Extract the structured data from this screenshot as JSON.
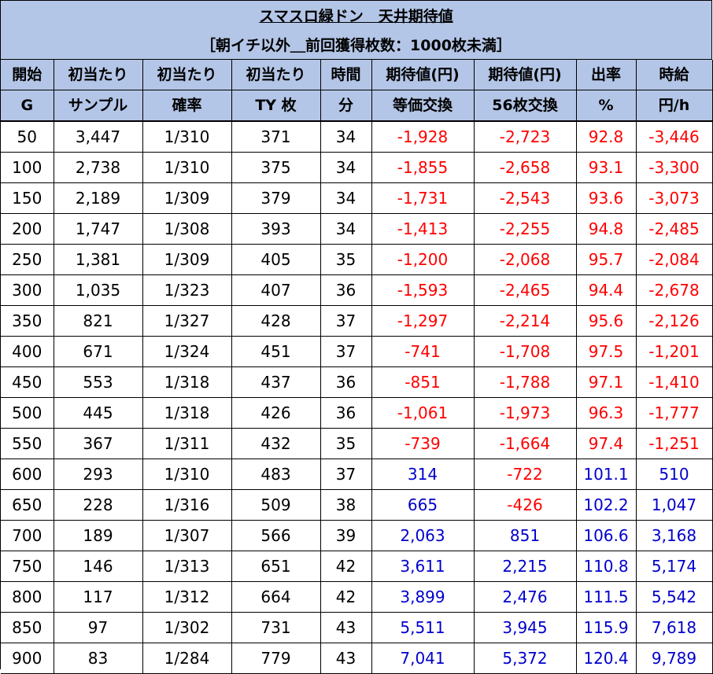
{
  "title": "スマスロ緑ドン　天井期待値",
  "subtitle": "［朝イチ以外＿前回獲得枚数：1000枚未満］",
  "headers_row1": [
    "開始",
    "初当たり",
    "初当たり",
    "初当たり",
    "時間",
    "期待値(円)",
    "期待値(円)",
    "出率",
    "時給"
  ],
  "headers_row2": [
    "G",
    "サンプル",
    "確率",
    "TY 枚",
    "分",
    "等価交換",
    "56枚交換",
    "%",
    "円/h"
  ],
  "colors": {
    "header_bg": "#b4c6e7",
    "negative": "#ff0000",
    "positive": "#0000cc"
  },
  "rows": [
    [
      "50",
      "3,447",
      "1/310",
      "371",
      "34",
      "-1,928",
      "-2,723",
      "92.8",
      "-3,446"
    ],
    [
      "100",
      "2,738",
      "1/310",
      "375",
      "34",
      "-1,855",
      "-2,658",
      "93.1",
      "-3,300"
    ],
    [
      "150",
      "2,189",
      "1/309",
      "379",
      "34",
      "-1,731",
      "-2,543",
      "93.6",
      "-3,073"
    ],
    [
      "200",
      "1,747",
      "1/308",
      "393",
      "34",
      "-1,413",
      "-2,255",
      "94.8",
      "-2,485"
    ],
    [
      "250",
      "1,381",
      "1/309",
      "405",
      "35",
      "-1,200",
      "-2,068",
      "95.7",
      "-2,084"
    ],
    [
      "300",
      "1,035",
      "1/323",
      "407",
      "36",
      "-1,593",
      "-2,465",
      "94.4",
      "-2,678"
    ],
    [
      "350",
      "821",
      "1/327",
      "428",
      "37",
      "-1,297",
      "-2,214",
      "95.6",
      "-2,126"
    ],
    [
      "400",
      "671",
      "1/324",
      "451",
      "37",
      "-741",
      "-1,708",
      "97.5",
      "-1,201"
    ],
    [
      "450",
      "553",
      "1/318",
      "437",
      "36",
      "-851",
      "-1,788",
      "97.1",
      "-1,410"
    ],
    [
      "500",
      "445",
      "1/318",
      "426",
      "36",
      "-1,061",
      "-1,973",
      "96.3",
      "-1,777"
    ],
    [
      "550",
      "367",
      "1/311",
      "432",
      "35",
      "-739",
      "-1,664",
      "97.4",
      "-1,251"
    ],
    [
      "600",
      "293",
      "1/310",
      "483",
      "37",
      "314",
      "-722",
      "101.1",
      "510"
    ],
    [
      "650",
      "228",
      "1/316",
      "509",
      "38",
      "665",
      "-426",
      "102.2",
      "1,047"
    ],
    [
      "700",
      "189",
      "1/307",
      "566",
      "39",
      "2,063",
      "851",
      "106.6",
      "3,168"
    ],
    [
      "750",
      "146",
      "1/313",
      "651",
      "42",
      "3,611",
      "2,215",
      "110.8",
      "5,174"
    ],
    [
      "800",
      "117",
      "1/312",
      "664",
      "42",
      "3,899",
      "2,476",
      "111.5",
      "5,542"
    ],
    [
      "850",
      "97",
      "1/302",
      "731",
      "43",
      "5,511",
      "3,945",
      "115.9",
      "7,618"
    ],
    [
      "900",
      "83",
      "1/284",
      "779",
      "43",
      "7,041",
      "5,372",
      "120.4",
      "9,789"
    ]
  ]
}
